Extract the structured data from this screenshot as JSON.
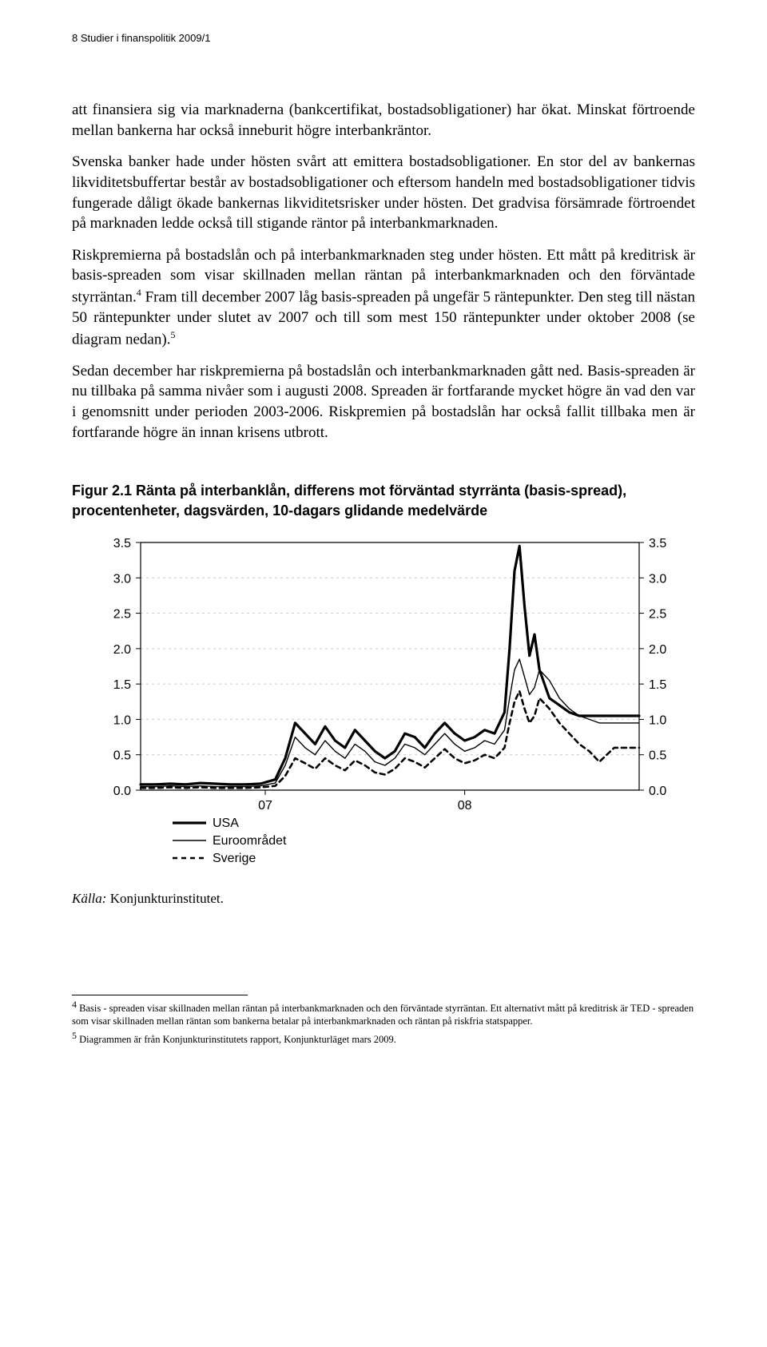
{
  "header": "8  Studier i finanspolitik 2009/1",
  "paragraphs": {
    "p1": "att finansiera sig via marknaderna (bankcertifikat, bostadsobligationer) har ökat. Minskat förtroende mellan bankerna har också inneburit högre interbankräntor.",
    "p2a": "Svenska banker hade under hösten svårt att emittera bostadsobligationer. En stor del av bankernas likviditetsbuffertar består av bostadsobligationer och eftersom handeln med bostadsobligationer tidvis fungerade dåligt ökade bankernas likviditetsrisker under hösten. Det gradvisa försämrade förtroendet på marknaden ledde också till stigande räntor på interbankmarknaden.",
    "p3a": "Riskpremierna på bostadslån och på interbankmarknaden steg under hösten. Ett mått på kreditrisk är basis-spreaden som visar skillnaden mellan räntan på interbankmarknaden och den förväntade styrräntan.",
    "p3b": " Fram till december 2007 låg basis-spreaden på ungefär 5 räntepunkter. Den steg till nästan 50 räntepunkter under slutet av 2007 och till som mest 150 räntepunkter under oktober 2008 (se diagram nedan).",
    "p4": "Sedan december har riskpremierna på bostadslån och interbankmarknaden gått ned. Basis-spreaden är nu tillbaka på samma nivåer som i augusti 2008. Spreaden är fortfarande mycket högre än vad den var i genomsnitt under perioden 2003-2006. Riskpremien på bostadslån har också fallit tillbaka men är fortfarande högre än innan krisens utbrott."
  },
  "figure": {
    "title": "Figur 2.1 Ränta på interbanklån, differens mot förväntad styrränta (basis-spread), procentenheter, dagsvärden, 10-dagars glidande medelvärde",
    "chart": {
      "type": "line",
      "ylim": [
        0.0,
        3.5
      ],
      "ytick_step": 0.5,
      "yticks_left": [
        "3.5",
        "3.0",
        "2.5",
        "2.0",
        "1.5",
        "1.0",
        "0.5",
        "0.0"
      ],
      "yticks_right": [
        "3.5",
        "3.0",
        "2.5",
        "2.0",
        "1.5",
        "1.0",
        "0.5",
        "0.0"
      ],
      "xticks": [
        "07",
        "08"
      ],
      "background_color": "#ffffff",
      "grid_color": "#c9c9c9",
      "axis_color": "#000000",
      "tick_fontsize": 16,
      "series": [
        {
          "name": "USA",
          "color": "#000000",
          "width": 3.2,
          "dash": "none",
          "points": [
            [
              0,
              0.08
            ],
            [
              3,
              0.08
            ],
            [
              6,
              0.09
            ],
            [
              9,
              0.08
            ],
            [
              12,
              0.1
            ],
            [
              15,
              0.09
            ],
            [
              18,
              0.08
            ],
            [
              21,
              0.08
            ],
            [
              24,
              0.09
            ],
            [
              27,
              0.15
            ],
            [
              29,
              0.45
            ],
            [
              31,
              0.95
            ],
            [
              33,
              0.8
            ],
            [
              35,
              0.65
            ],
            [
              37,
              0.9
            ],
            [
              39,
              0.7
            ],
            [
              41,
              0.6
            ],
            [
              43,
              0.85
            ],
            [
              45,
              0.7
            ],
            [
              47,
              0.55
            ],
            [
              49,
              0.45
            ],
            [
              51,
              0.55
            ],
            [
              53,
              0.8
            ],
            [
              55,
              0.75
            ],
            [
              57,
              0.6
            ],
            [
              59,
              0.8
            ],
            [
              61,
              0.95
            ],
            [
              63,
              0.8
            ],
            [
              65,
              0.7
            ],
            [
              67,
              0.75
            ],
            [
              69,
              0.85
            ],
            [
              71,
              0.8
            ],
            [
              73,
              1.1
            ],
            [
              74,
              2.0
            ],
            [
              75,
              3.1
            ],
            [
              76,
              3.45
            ],
            [
              77,
              2.6
            ],
            [
              78,
              1.9
            ],
            [
              79,
              2.2
            ],
            [
              80,
              1.7
            ],
            [
              82,
              1.3
            ],
            [
              84,
              1.2
            ],
            [
              86,
              1.1
            ],
            [
              88,
              1.05
            ],
            [
              90,
              1.05
            ],
            [
              92,
              1.05
            ],
            [
              95,
              1.05
            ],
            [
              100,
              1.05
            ]
          ]
        },
        {
          "name": "Euroområdet",
          "color": "#000000",
          "width": 1.4,
          "dash": "none",
          "points": [
            [
              0,
              0.05
            ],
            [
              3,
              0.05
            ],
            [
              6,
              0.06
            ],
            [
              9,
              0.05
            ],
            [
              12,
              0.06
            ],
            [
              15,
              0.05
            ],
            [
              18,
              0.05
            ],
            [
              21,
              0.05
            ],
            [
              24,
              0.06
            ],
            [
              27,
              0.1
            ],
            [
              29,
              0.35
            ],
            [
              31,
              0.75
            ],
            [
              33,
              0.6
            ],
            [
              35,
              0.5
            ],
            [
              37,
              0.7
            ],
            [
              39,
              0.55
            ],
            [
              41,
              0.45
            ],
            [
              43,
              0.65
            ],
            [
              45,
              0.55
            ],
            [
              47,
              0.4
            ],
            [
              49,
              0.35
            ],
            [
              51,
              0.45
            ],
            [
              53,
              0.65
            ],
            [
              55,
              0.6
            ],
            [
              57,
              0.5
            ],
            [
              59,
              0.65
            ],
            [
              61,
              0.8
            ],
            [
              63,
              0.65
            ],
            [
              65,
              0.55
            ],
            [
              67,
              0.6
            ],
            [
              69,
              0.7
            ],
            [
              71,
              0.65
            ],
            [
              73,
              0.85
            ],
            [
              74,
              1.3
            ],
            [
              75,
              1.7
            ],
            [
              76,
              1.85
            ],
            [
              77,
              1.6
            ],
            [
              78,
              1.35
            ],
            [
              79,
              1.45
            ],
            [
              80,
              1.7
            ],
            [
              82,
              1.55
            ],
            [
              84,
              1.3
            ],
            [
              86,
              1.15
            ],
            [
              88,
              1.05
            ],
            [
              90,
              1.0
            ],
            [
              92,
              0.95
            ],
            [
              95,
              0.95
            ],
            [
              100,
              0.95
            ]
          ]
        },
        {
          "name": "Sverige",
          "color": "#000000",
          "width": 2.6,
          "dash": "6,5",
          "points": [
            [
              0,
              0.03
            ],
            [
              3,
              0.03
            ],
            [
              6,
              0.04
            ],
            [
              9,
              0.03
            ],
            [
              12,
              0.04
            ],
            [
              15,
              0.03
            ],
            [
              18,
              0.03
            ],
            [
              21,
              0.03
            ],
            [
              24,
              0.04
            ],
            [
              27,
              0.06
            ],
            [
              29,
              0.2
            ],
            [
              31,
              0.45
            ],
            [
              33,
              0.38
            ],
            [
              35,
              0.3
            ],
            [
              37,
              0.45
            ],
            [
              39,
              0.35
            ],
            [
              41,
              0.28
            ],
            [
              43,
              0.42
            ],
            [
              45,
              0.35
            ],
            [
              47,
              0.25
            ],
            [
              49,
              0.22
            ],
            [
              51,
              0.3
            ],
            [
              53,
              0.45
            ],
            [
              55,
              0.4
            ],
            [
              57,
              0.32
            ],
            [
              59,
              0.45
            ],
            [
              61,
              0.58
            ],
            [
              63,
              0.45
            ],
            [
              65,
              0.38
            ],
            [
              67,
              0.42
            ],
            [
              69,
              0.5
            ],
            [
              71,
              0.45
            ],
            [
              73,
              0.6
            ],
            [
              74,
              0.95
            ],
            [
              75,
              1.25
            ],
            [
              76,
              1.4
            ],
            [
              77,
              1.15
            ],
            [
              78,
              0.95
            ],
            [
              79,
              1.05
            ],
            [
              80,
              1.3
            ],
            [
              82,
              1.15
            ],
            [
              84,
              0.95
            ],
            [
              86,
              0.8
            ],
            [
              88,
              0.65
            ],
            [
              90,
              0.55
            ],
            [
              92,
              0.4
            ],
            [
              95,
              0.6
            ],
            [
              100,
              0.6
            ]
          ]
        }
      ],
      "legend": {
        "items": [
          "USA",
          "Euroområdet",
          "Sverige"
        ]
      }
    },
    "source_label": "Källa:",
    "source_value": " Konjunkturinstitutet."
  },
  "footnotes": {
    "f4_num": "4",
    "f4": " Basis - spreaden visar skillnaden mellan räntan på interbankmarknaden och den förväntade styrräntan. Ett alternativt mått på kreditrisk är TED - spreaden som visar skillnaden mellan räntan som bankerna betalar på interbankmarknaden och räntan på riskfria statspapper.",
    "f5_num": "5",
    "f5": " Diagrammen är från Konjunkturinstitutets rapport, Konjunkturläget mars 2009."
  }
}
